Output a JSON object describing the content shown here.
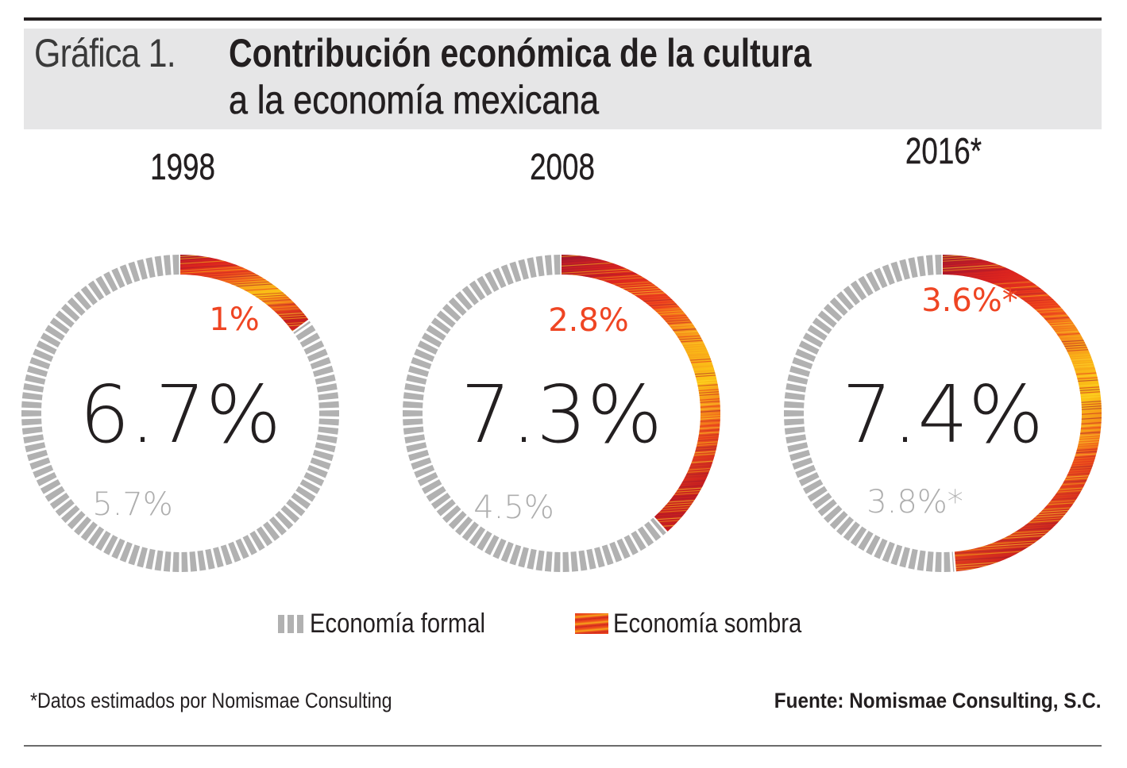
{
  "header": {
    "title_prefix": "Gráfica 1.",
    "title_line1": "Contribución económica de la cultura",
    "title_line2": "a la economía mexicana"
  },
  "colors": {
    "formal": "#b1b1b1",
    "shadow_label": "#ef4523",
    "shadow_gradient": [
      "#a3162e",
      "#d9231f",
      "#ef4b1d",
      "#f7a11a",
      "#fbc316",
      "#ee5a1c",
      "#c8201f"
    ],
    "total_text": "#231f20",
    "formal_label": "#aeaeae"
  },
  "chart_data": {
    "type": "pie",
    "title": "Contribución económica de la cultura a la economía mexicana",
    "subtitle": "Gráfica 1.",
    "units": "% of economy",
    "legend": {
      "placement": "bottom",
      "entries": [
        "Economía formal",
        "Economía sombra"
      ]
    },
    "charts": [
      {
        "year_label": "1998",
        "total": 6.7,
        "total_label": "6.7%",
        "formal": 5.7,
        "formal_label": "5.7%",
        "shadow": 1.0,
        "shadow_label": "1%"
      },
      {
        "year_label": "2008",
        "total": 7.3,
        "total_label": "7.3%",
        "formal": 4.5,
        "formal_label": "4.5%",
        "shadow": 2.8,
        "shadow_label": "2.8%"
      },
      {
        "year_label": "2016*",
        "total": 7.4,
        "total_label": "7.4%",
        "formal": 3.8,
        "formal_label": "3.8%*",
        "shadow": 3.6,
        "shadow_label": "3.6%*"
      }
    ]
  },
  "legend": {
    "formal_label": "Economía formal",
    "shadow_label": "Economía sombra"
  },
  "footer": {
    "footnote": "*Datos estimados por Nomismae Consulting",
    "source": "Fuente: Nomismae Consulting, S.C."
  }
}
